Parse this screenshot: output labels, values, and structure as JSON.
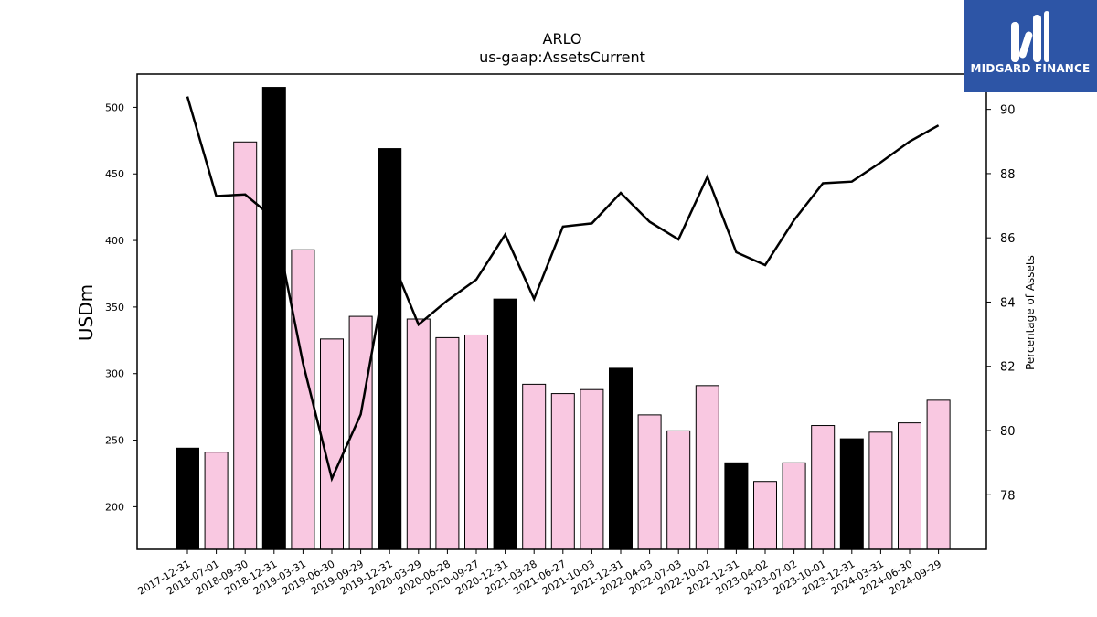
{
  "logo": {
    "text": "MIDGARD FINANCE"
  },
  "chart_data": {
    "type": "bar",
    "title": "ARLO",
    "subtitle": "us-gaap:AssetsCurrent",
    "ylabel": "USDm",
    "y2label": "Percentage of Assets",
    "ylim": [
      168,
      525
    ],
    "y2lim": [
      76.3,
      91.1
    ],
    "yticks": [
      200,
      250,
      300,
      350,
      400,
      450,
      500
    ],
    "y2ticks": [
      78,
      80,
      82,
      84,
      86,
      88,
      90
    ],
    "grid": false,
    "categories": [
      "2017-12-31",
      "2018-07-01",
      "2018-09-30",
      "2018-12-31",
      "2019-03-31",
      "2019-06-30",
      "2019-09-29",
      "2019-12-31",
      "2020-03-29",
      "2020-06-28",
      "2020-09-27",
      "2020-12-31",
      "2021-03-28",
      "2021-06-27",
      "2021-10-03",
      "2021-12-31",
      "2022-04-03",
      "2022-07-03",
      "2022-10-02",
      "2022-12-31",
      "2023-04-02",
      "2023-07-02",
      "2023-10-01",
      "2023-12-31",
      "2024-03-31",
      "2024-06-30",
      "2024-09-29"
    ],
    "series": [
      {
        "type": "bar",
        "values": [
          244,
          241,
          474,
          515,
          393,
          326,
          343,
          469,
          341,
          327,
          329,
          356,
          292,
          285,
          288,
          304,
          269,
          257,
          291,
          233,
          219,
          233,
          261,
          251,
          256,
          263,
          280
        ],
        "colors": [
          "#000000",
          "#f9c8e1",
          "#f9c8e1",
          "#000000",
          "#f9c8e1",
          "#f9c8e1",
          "#f9c8e1",
          "#000000",
          "#f9c8e1",
          "#f9c8e1",
          "#f9c8e1",
          "#000000",
          "#f9c8e1",
          "#f9c8e1",
          "#f9c8e1",
          "#000000",
          "#f9c8e1",
          "#f9c8e1",
          "#f9c8e1",
          "#000000",
          "#f9c8e1",
          "#f9c8e1",
          "#f9c8e1",
          "#000000",
          "#f9c8e1",
          "#f9c8e1",
          "#f9c8e1"
        ]
      },
      {
        "type": "line",
        "axis": "right",
        "color": "#000000",
        "values": [
          90.4,
          87.3,
          87.35,
          86.6,
          82.1,
          78.5,
          80.5,
          85.5,
          83.3,
          84.05,
          84.7,
          86.1,
          84.1,
          86.35,
          86.45,
          87.4,
          86.5,
          85.95,
          87.9,
          85.55,
          85.15,
          86.55,
          87.7,
          87.75,
          88.35,
          89.0,
          89.5
        ]
      }
    ]
  }
}
